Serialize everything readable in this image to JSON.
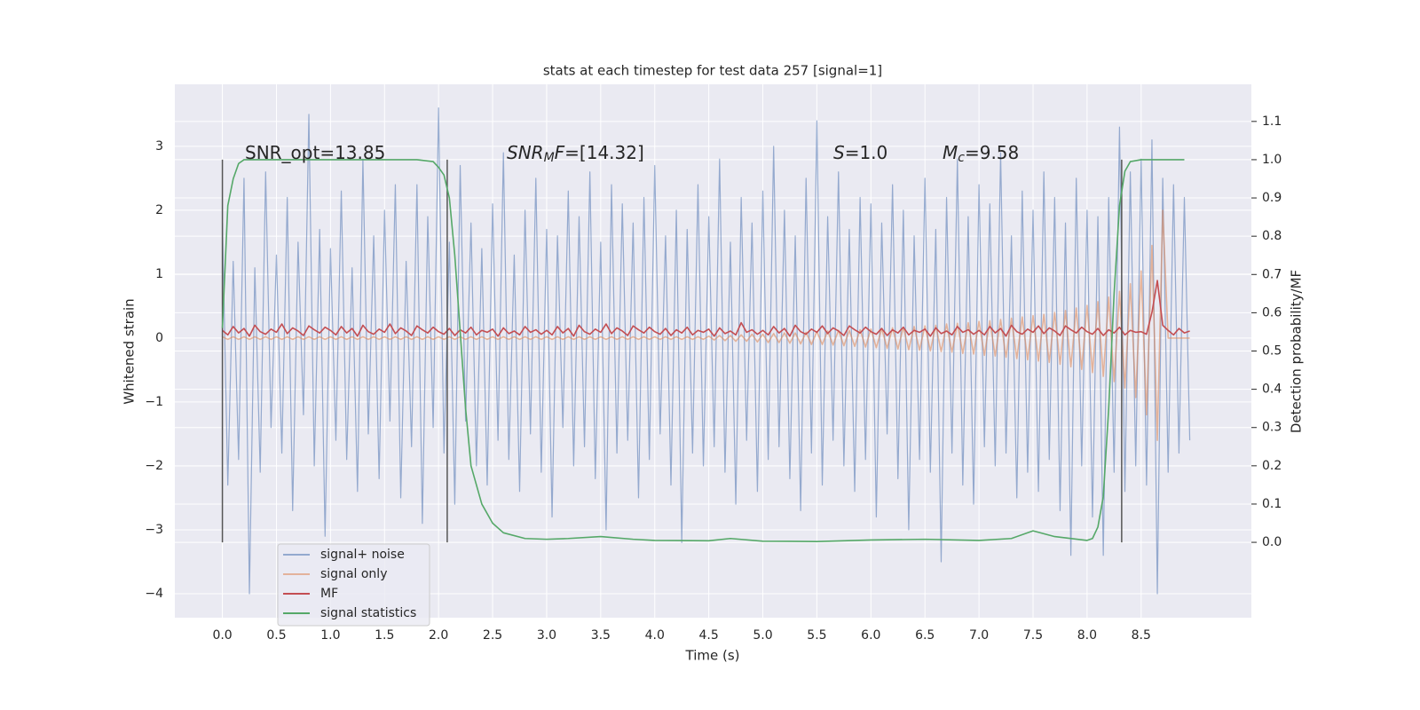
{
  "chart_data": {
    "type": "line",
    "title": "stats at each timestep for test data 257 [signal=1]",
    "xlabel": "Time (s)",
    "ylabel": "Whitened strain",
    "y2label": "Detection probability/MF",
    "xlim": [
      -0.44,
      9.52
    ],
    "ylim": [
      -4.375,
      3.97
    ],
    "y2lim": [
      -0.197,
      1.197
    ],
    "xticks": [
      {
        "value": 0,
        "label": "0.0"
      },
      0.5,
      {
        "value": 1,
        "label": "1.0"
      },
      1.5,
      {
        "value": 2,
        "label": "2.0"
      },
      2.5,
      {
        "value": 3,
        "label": "3.0"
      },
      3.5,
      {
        "value": 4,
        "label": "4.0"
      },
      4.5,
      {
        "value": 5,
        "label": "5.0"
      },
      5.5,
      {
        "value": 6,
        "label": "6.0"
      },
      6.5,
      {
        "value": 7,
        "label": "7.0"
      },
      7.5,
      {
        "value": 8,
        "label": "8.0"
      },
      8.5
    ],
    "yticks": [
      {
        "value": -4,
        "label": "−4"
      },
      {
        "value": -3,
        "label": "−3"
      },
      {
        "value": -2,
        "label": "−2"
      },
      {
        "value": -1,
        "label": "−1"
      },
      0,
      1,
      2,
      3
    ],
    "y2ticks": [
      {
        "value": 0,
        "label": "0.0"
      },
      0.1,
      0.2,
      0.3,
      0.4,
      0.5,
      0.6,
      0.7,
      0.8,
      0.9,
      {
        "value": 1,
        "label": "1.0"
      },
      1.1
    ],
    "grid": true,
    "legend": "lower left",
    "x": [
      0,
      0.05,
      0.1,
      0.15,
      0.2,
      0.25,
      0.3,
      0.35,
      0.4,
      0.45,
      0.5,
      0.55,
      0.6,
      0.65,
      0.7,
      0.75,
      0.8,
      0.85,
      0.9,
      0.95,
      1,
      1.05,
      1.1,
      1.15,
      1.2,
      1.25,
      1.3,
      1.35,
      1.4,
      1.45,
      1.5,
      1.55,
      1.6,
      1.65,
      1.7,
      1.75,
      1.8,
      1.85,
      1.9,
      1.95,
      2,
      2.05,
      2.1,
      2.15,
      2.2,
      2.25,
      2.3,
      2.35,
      2.4,
      2.45,
      2.5,
      2.55,
      2.6,
      2.65,
      2.7,
      2.75,
      2.8,
      2.85,
      2.9,
      2.95,
      3,
      3.05,
      3.1,
      3.15,
      3.2,
      3.25,
      3.3,
      3.35,
      3.4,
      3.45,
      3.5,
      3.55,
      3.6,
      3.65,
      3.7,
      3.75,
      3.8,
      3.85,
      3.9,
      3.95,
      4,
      4.05,
      4.1,
      4.15,
      4.2,
      4.25,
      4.3,
      4.35,
      4.4,
      4.45,
      4.5,
      4.55,
      4.6,
      4.65,
      4.7,
      4.75,
      4.8,
      4.85,
      4.9,
      4.95,
      5,
      5.05,
      5.1,
      5.15,
      5.2,
      5.25,
      5.3,
      5.35,
      5.4,
      5.45,
      5.5,
      5.55,
      5.6,
      5.65,
      5.7,
      5.75,
      5.8,
      5.85,
      5.9,
      5.95,
      6,
      6.05,
      6.1,
      6.15,
      6.2,
      6.25,
      6.3,
      6.35,
      6.4,
      6.45,
      6.5,
      6.55,
      6.6,
      6.65,
      6.7,
      6.75,
      6.8,
      6.85,
      6.9,
      6.95,
      7,
      7.05,
      7.1,
      7.15,
      7.2,
      7.25,
      7.3,
      7.35,
      7.4,
      7.45,
      7.5,
      7.55,
      7.6,
      7.65,
      7.7,
      7.75,
      7.8,
      7.85,
      7.9,
      7.95,
      8,
      8.05,
      8.1,
      8.15,
      8.2,
      8.25,
      8.3,
      8.35,
      8.4,
      8.45,
      8.5,
      8.55,
      8.6,
      8.65,
      8.7,
      8.75,
      8.8,
      8.85,
      8.9,
      8.95
    ],
    "series": [
      {
        "name": "signal+ noise",
        "color": "#4c72b0",
        "alpha": 0.55,
        "values": [
          1.8,
          -2.3,
          1.2,
          -1.9,
          2.5,
          -4.0,
          1.1,
          -2.1,
          2.6,
          -1.4,
          1.3,
          -1.8,
          2.2,
          -2.7,
          1.5,
          -1.2,
          3.5,
          -2.0,
          1.7,
          -3.1,
          1.4,
          -1.6,
          2.3,
          -1.9,
          1.1,
          -2.4,
          2.8,
          -1.5,
          1.6,
          -2.2,
          2.0,
          -1.3,
          2.4,
          -2.5,
          1.2,
          -1.7,
          2.4,
          -2.9,
          1.9,
          -1.4,
          3.6,
          -1.8,
          1.5,
          -2.6,
          2.7,
          -1.3,
          1.8,
          -2.0,
          1.4,
          -2.3,
          2.1,
          -1.6,
          2.9,
          -1.9,
          1.3,
          -2.4,
          2.0,
          -1.5,
          2.5,
          -2.1,
          1.7,
          -2.8,
          1.6,
          -1.4,
          2.3,
          -2.0,
          1.9,
          -1.7,
          2.6,
          -2.2,
          1.5,
          -3.0,
          2.4,
          -1.8,
          2.1,
          -1.6,
          1.8,
          -2.5,
          2.2,
          -1.9,
          2.7,
          -1.5,
          1.6,
          -2.3,
          2.0,
          -3.2,
          1.7,
          -1.8,
          2.4,
          -2.0,
          1.9,
          -1.7,
          2.8,
          -2.1,
          1.5,
          -2.6,
          2.2,
          -1.6,
          1.8,
          -2.4,
          2.3,
          -1.9,
          3.0,
          -1.7,
          2.0,
          -2.2,
          1.6,
          -2.7,
          2.5,
          -1.8,
          3.4,
          -2.3,
          1.9,
          -1.6,
          2.6,
          -2.0,
          1.7,
          -2.4,
          2.2,
          -1.9,
          2.1,
          -2.8,
          1.8,
          -1.5,
          2.4,
          -2.2,
          2.0,
          -3.0,
          1.6,
          -1.9,
          2.5,
          -2.1,
          1.7,
          -3.5,
          2.2,
          -1.8,
          2.8,
          -2.3,
          1.9,
          -2.6,
          2.4,
          -1.7,
          2.1,
          -2.0,
          2.9,
          -1.8,
          1.6,
          -2.5,
          2.3,
          -2.1,
          2.0,
          -2.4,
          2.6,
          -1.9,
          2.2,
          -2.7,
          1.8,
          -3.4,
          2.5,
          -2.0,
          2.0,
          -2.8,
          1.9,
          -3.4,
          2.2,
          -2.1,
          3.3,
          -2.4,
          2.6,
          -2.0,
          2.8,
          -2.3,
          3.1,
          -4.0,
          2.5,
          -2.1,
          2.4,
          -1.8,
          2.2,
          -1.6
        ]
      },
      {
        "name": "signal only",
        "color": "#dd8452",
        "alpha": 0.55,
        "values": [
          0.02,
          -0.02,
          0.02,
          -0.02,
          0.02,
          -0.02,
          0.02,
          -0.02,
          0.02,
          -0.02,
          0.02,
          -0.02,
          0.02,
          -0.02,
          0.02,
          -0.02,
          0.02,
          -0.02,
          0.02,
          -0.02,
          0.02,
          -0.02,
          0.02,
          -0.02,
          0.02,
          -0.02,
          0.02,
          -0.02,
          0.02,
          -0.02,
          0.02,
          -0.02,
          0.02,
          -0.02,
          0.02,
          -0.02,
          0.02,
          -0.02,
          0.02,
          -0.02,
          0.02,
          -0.02,
          0.02,
          -0.02,
          0.02,
          -0.02,
          0.02,
          -0.02,
          0.02,
          -0.02,
          0.02,
          -0.02,
          0.02,
          -0.02,
          0.02,
          -0.02,
          0.02,
          -0.02,
          0.02,
          -0.02,
          0.02,
          -0.02,
          0.02,
          -0.02,
          0.02,
          -0.02,
          0.02,
          -0.02,
          0.02,
          -0.02,
          0.02,
          -0.02,
          0.02,
          -0.02,
          0.02,
          -0.02,
          0.02,
          -0.02,
          0.02,
          -0.02,
          0.02,
          -0.02,
          0.02,
          -0.02,
          0.02,
          -0.02,
          0.02,
          -0.02,
          0.02,
          -0.02,
          0.03,
          -0.03,
          0.04,
          -0.04,
          0.04,
          -0.05,
          0.05,
          -0.05,
          0.06,
          -0.06,
          0.06,
          -0.07,
          0.07,
          -0.07,
          0.08,
          -0.08,
          0.08,
          -0.09,
          0.09,
          -0.1,
          0.1,
          -0.1,
          0.11,
          -0.11,
          0.12,
          -0.12,
          0.12,
          -0.13,
          0.13,
          -0.14,
          0.14,
          -0.15,
          0.15,
          -0.16,
          0.16,
          -0.17,
          0.17,
          -0.18,
          0.18,
          -0.19,
          0.19,
          -0.2,
          0.2,
          -0.21,
          0.22,
          -0.22,
          0.23,
          -0.24,
          0.24,
          -0.25,
          0.26,
          -0.27,
          0.27,
          -0.28,
          0.29,
          -0.3,
          0.31,
          -0.32,
          0.33,
          -0.34,
          0.35,
          -0.36,
          0.37,
          -0.38,
          0.4,
          -0.41,
          0.43,
          -0.45,
          0.47,
          -0.49,
          0.51,
          -0.54,
          0.57,
          -0.6,
          0.64,
          -0.68,
          0.73,
          -0.78,
          0.85,
          -0.93,
          1.05,
          -1.2,
          1.45,
          -1.6,
          2.0,
          0,
          0,
          0,
          0,
          0
        ]
      },
      {
        "name": "MF",
        "color": "#c44e52",
        "alpha": 1,
        "values": [
          0.12,
          0.05,
          0.18,
          0.08,
          0.15,
          0.03,
          0.2,
          0.1,
          0.06,
          0.14,
          0.09,
          0.22,
          0.07,
          0.16,
          0.11,
          0.04,
          0.19,
          0.13,
          0.08,
          0.17,
          0.12,
          0.05,
          0.18,
          0.08,
          0.15,
          0.03,
          0.2,
          0.1,
          0.06,
          0.14,
          0.09,
          0.22,
          0.07,
          0.16,
          0.11,
          0.04,
          0.19,
          0.13,
          0.08,
          0.17,
          0.1,
          0.06,
          0.15,
          0.04,
          0.13,
          0.08,
          0.17,
          0.05,
          0.12,
          0.09,
          0.14,
          0.03,
          0.16,
          0.07,
          0.11,
          0.05,
          0.18,
          0.09,
          0.13,
          0.06,
          0.12,
          0.05,
          0.18,
          0.08,
          0.15,
          0.03,
          0.2,
          0.1,
          0.06,
          0.14,
          0.09,
          0.22,
          0.07,
          0.16,
          0.11,
          0.04,
          0.19,
          0.13,
          0.08,
          0.17,
          0.1,
          0.06,
          0.15,
          0.04,
          0.13,
          0.08,
          0.17,
          0.05,
          0.12,
          0.09,
          0.14,
          0.03,
          0.16,
          0.07,
          0.11,
          0.05,
          0.24,
          0.09,
          0.13,
          0.06,
          0.12,
          0.05,
          0.18,
          0.08,
          0.15,
          0.03,
          0.2,
          0.1,
          0.06,
          0.14,
          0.09,
          0.19,
          0.07,
          0.16,
          0.11,
          0.04,
          0.19,
          0.13,
          0.08,
          0.17,
          0.1,
          0.06,
          0.15,
          0.04,
          0.13,
          0.08,
          0.17,
          0.05,
          0.12,
          0.09,
          0.14,
          0.03,
          0.16,
          0.07,
          0.11,
          0.05,
          0.18,
          0.09,
          0.13,
          0.06,
          0.12,
          0.05,
          0.18,
          0.08,
          0.15,
          0.03,
          0.2,
          0.1,
          0.06,
          0.14,
          0.09,
          0.19,
          0.07,
          0.16,
          0.11,
          0.04,
          0.19,
          0.13,
          0.08,
          0.17,
          0.1,
          0.06,
          0.15,
          0.04,
          0.13,
          0.08,
          0.17,
          0.05,
          0.12,
          0.09,
          0.1,
          0.06,
          0.4,
          0.9,
          0.2,
          0.12,
          0.05,
          0.15,
          0.08,
          0.11
        ]
      },
      {
        "name": "signal statistics",
        "color": "#55a868",
        "alpha": 1,
        "axis": "y2",
        "x": [
          0,
          0.05,
          0.1,
          0.15,
          0.2,
          0.3,
          0.5,
          1.0,
          1.5,
          1.8,
          1.95,
          2.0,
          2.05,
          2.1,
          2.15,
          2.2,
          2.25,
          2.3,
          2.4,
          2.5,
          2.6,
          2.8,
          3.0,
          3.2,
          3.5,
          3.8,
          4.0,
          4.5,
          4.7,
          5.0,
          5.5,
          6.0,
          6.5,
          7.0,
          7.3,
          7.5,
          7.7,
          8.0,
          8.05,
          8.1,
          8.15,
          8.2,
          8.25,
          8.3,
          8.35,
          8.4,
          8.5,
          8.9
        ],
        "values": [
          0.56,
          0.88,
          0.95,
          0.99,
          1.0,
          1.0,
          1.0,
          1.0,
          1.0,
          1.0,
          0.995,
          0.98,
          0.96,
          0.9,
          0.75,
          0.55,
          0.35,
          0.2,
          0.1,
          0.05,
          0.025,
          0.01,
          0.008,
          0.01,
          0.015,
          0.008,
          0.005,
          0.004,
          0.01,
          0.003,
          0.002,
          0.006,
          0.008,
          0.005,
          0.01,
          0.03,
          0.015,
          0.005,
          0.01,
          0.04,
          0.12,
          0.35,
          0.65,
          0.88,
          0.97,
          0.995,
          1.0,
          1.0
        ]
      }
    ],
    "vlines": {
      "x": [
        0,
        2.08,
        8.32
      ],
      "ymin": 0,
      "ymax": 1,
      "axis": "y2",
      "color": "#555555"
    },
    "annotations": [
      {
        "parts": [
          {
            "text": "SNR_opt=13.85"
          }
        ]
      },
      {
        "parts": [
          {
            "text": "SNR",
            "italic": true
          },
          {
            "text": "M",
            "italic": true,
            "sub": true
          },
          {
            "text": "F",
            "italic": true
          },
          {
            "text": "=[14.32]"
          }
        ]
      },
      {
        "parts": [
          {
            "text": "S",
            "italic": true
          },
          {
            "text": "=1.0"
          }
        ]
      },
      {
        "parts": [
          {
            "text": "M",
            "italic": true
          },
          {
            "text": "c",
            "italic": true,
            "sub": true
          },
          {
            "text": "=9.58"
          }
        ]
      }
    ]
  }
}
